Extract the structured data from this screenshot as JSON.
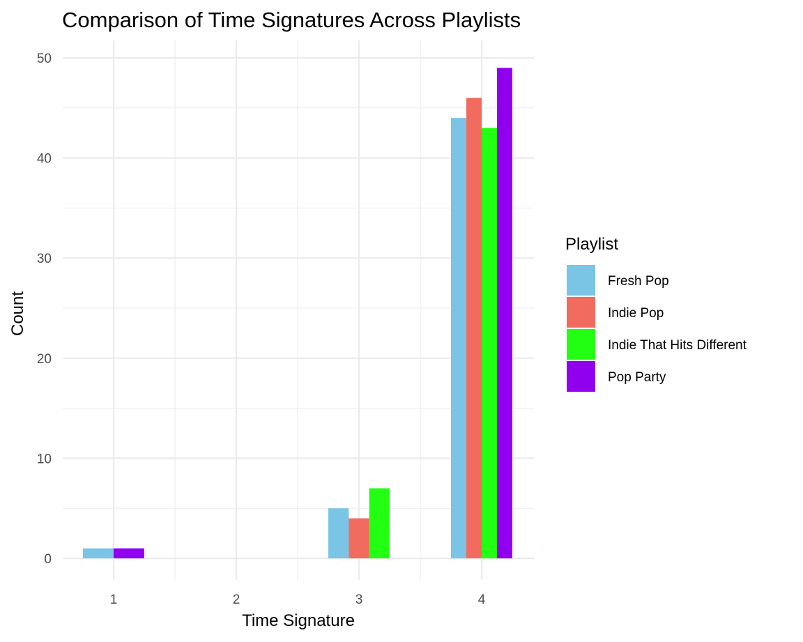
{
  "chart_data": {
    "type": "bar",
    "title": "Comparison of Time Signatures Across Playlists",
    "xlabel": "Time Signature",
    "ylabel": "Count",
    "categories": [
      "1",
      "2",
      "3",
      "4"
    ],
    "series": [
      {
        "name": "Fresh Pop",
        "color": "#7AC4E6",
        "values": [
          1,
          0,
          5,
          44
        ]
      },
      {
        "name": "Indie Pop",
        "color": "#F26B5F",
        "values": [
          0,
          0,
          4,
          46
        ]
      },
      {
        "name": "Indie That Hits Different",
        "color": "#22FF12",
        "values": [
          0,
          0,
          7,
          43
        ]
      },
      {
        "name": "Pop Party",
        "color": "#9000EE",
        "values": [
          1,
          0,
          0,
          49
        ]
      }
    ],
    "ylim": [
      0,
      50
    ],
    "yticks": [
      "0",
      "10",
      "20",
      "30",
      "40",
      "50"
    ],
    "grid": true,
    "legend": {
      "title": "Playlist",
      "position": "right"
    }
  }
}
